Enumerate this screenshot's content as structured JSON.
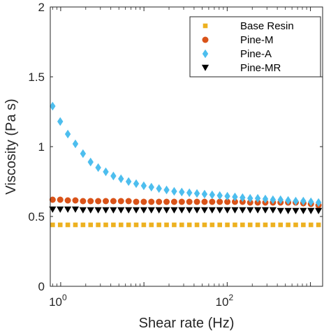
{
  "chart_data": {
    "type": "scatter",
    "title": "",
    "xlabel": "Shear rate (Hz)",
    "ylabel": "Viscosity (Pa s)",
    "xscale": "log",
    "xlim": [
      0.75,
      1400
    ],
    "ylim": [
      0,
      2
    ],
    "xticks": [
      {
        "value": 1,
        "base": "10",
        "exp": "0"
      },
      {
        "value": 100,
        "base": "10",
        "exp": "2"
      }
    ],
    "yticks": [
      {
        "value": 0,
        "label": "0"
      },
      {
        "value": 0.5,
        "label": "0.5"
      },
      {
        "value": 1,
        "label": "1"
      },
      {
        "value": 1.5,
        "label": "1.5"
      },
      {
        "value": 2,
        "label": "2"
      }
    ],
    "grid": false,
    "legend_position": "top-right",
    "x_points": {
      "start": 0.8,
      "end": 1250,
      "count": 36
    },
    "series": [
      {
        "name": "Base Resin",
        "marker": "square",
        "color": "#EDB120",
        "y": [
          0.44,
          0.44,
          0.44,
          0.44,
          0.44,
          0.44,
          0.44,
          0.44,
          0.44,
          0.44,
          0.44,
          0.44,
          0.44,
          0.44,
          0.44,
          0.44,
          0.44,
          0.44,
          0.44,
          0.44,
          0.44,
          0.44,
          0.44,
          0.44,
          0.44,
          0.44,
          0.44,
          0.44,
          0.44,
          0.44,
          0.44,
          0.44,
          0.44,
          0.44,
          0.44,
          0.44
        ]
      },
      {
        "name": "Pine-M",
        "marker": "circle",
        "color": "#D95319",
        "y": [
          0.62,
          0.62,
          0.615,
          0.615,
          0.61,
          0.61,
          0.61,
          0.61,
          0.61,
          0.61,
          0.61,
          0.605,
          0.605,
          0.605,
          0.605,
          0.605,
          0.605,
          0.605,
          0.605,
          0.605,
          0.605,
          0.605,
          0.605,
          0.605,
          0.605,
          0.605,
          0.6,
          0.6,
          0.6,
          0.6,
          0.6,
          0.6,
          0.6,
          0.595,
          0.59,
          0.58
        ]
      },
      {
        "name": "Pine-A",
        "marker": "diamond",
        "color": "#4DBEEE",
        "y": [
          1.29,
          1.18,
          1.09,
          1.02,
          0.95,
          0.89,
          0.85,
          0.82,
          0.79,
          0.77,
          0.75,
          0.735,
          0.72,
          0.71,
          0.7,
          0.69,
          0.68,
          0.675,
          0.67,
          0.665,
          0.66,
          0.655,
          0.65,
          0.645,
          0.64,
          0.635,
          0.63,
          0.63,
          0.625,
          0.62,
          0.62,
          0.615,
          0.61,
          0.61,
          0.605,
          0.6
        ]
      },
      {
        "name": "Pine-MR",
        "marker": "triangle-down",
        "color": "#000000",
        "y": [
          0.55,
          0.55,
          0.55,
          0.55,
          0.545,
          0.545,
          0.545,
          0.545,
          0.545,
          0.545,
          0.545,
          0.545,
          0.545,
          0.545,
          0.545,
          0.545,
          0.545,
          0.545,
          0.545,
          0.545,
          0.545,
          0.545,
          0.545,
          0.545,
          0.545,
          0.545,
          0.545,
          0.545,
          0.545,
          0.545,
          0.54,
          0.54,
          0.54,
          0.54,
          0.54,
          0.54
        ]
      }
    ]
  }
}
